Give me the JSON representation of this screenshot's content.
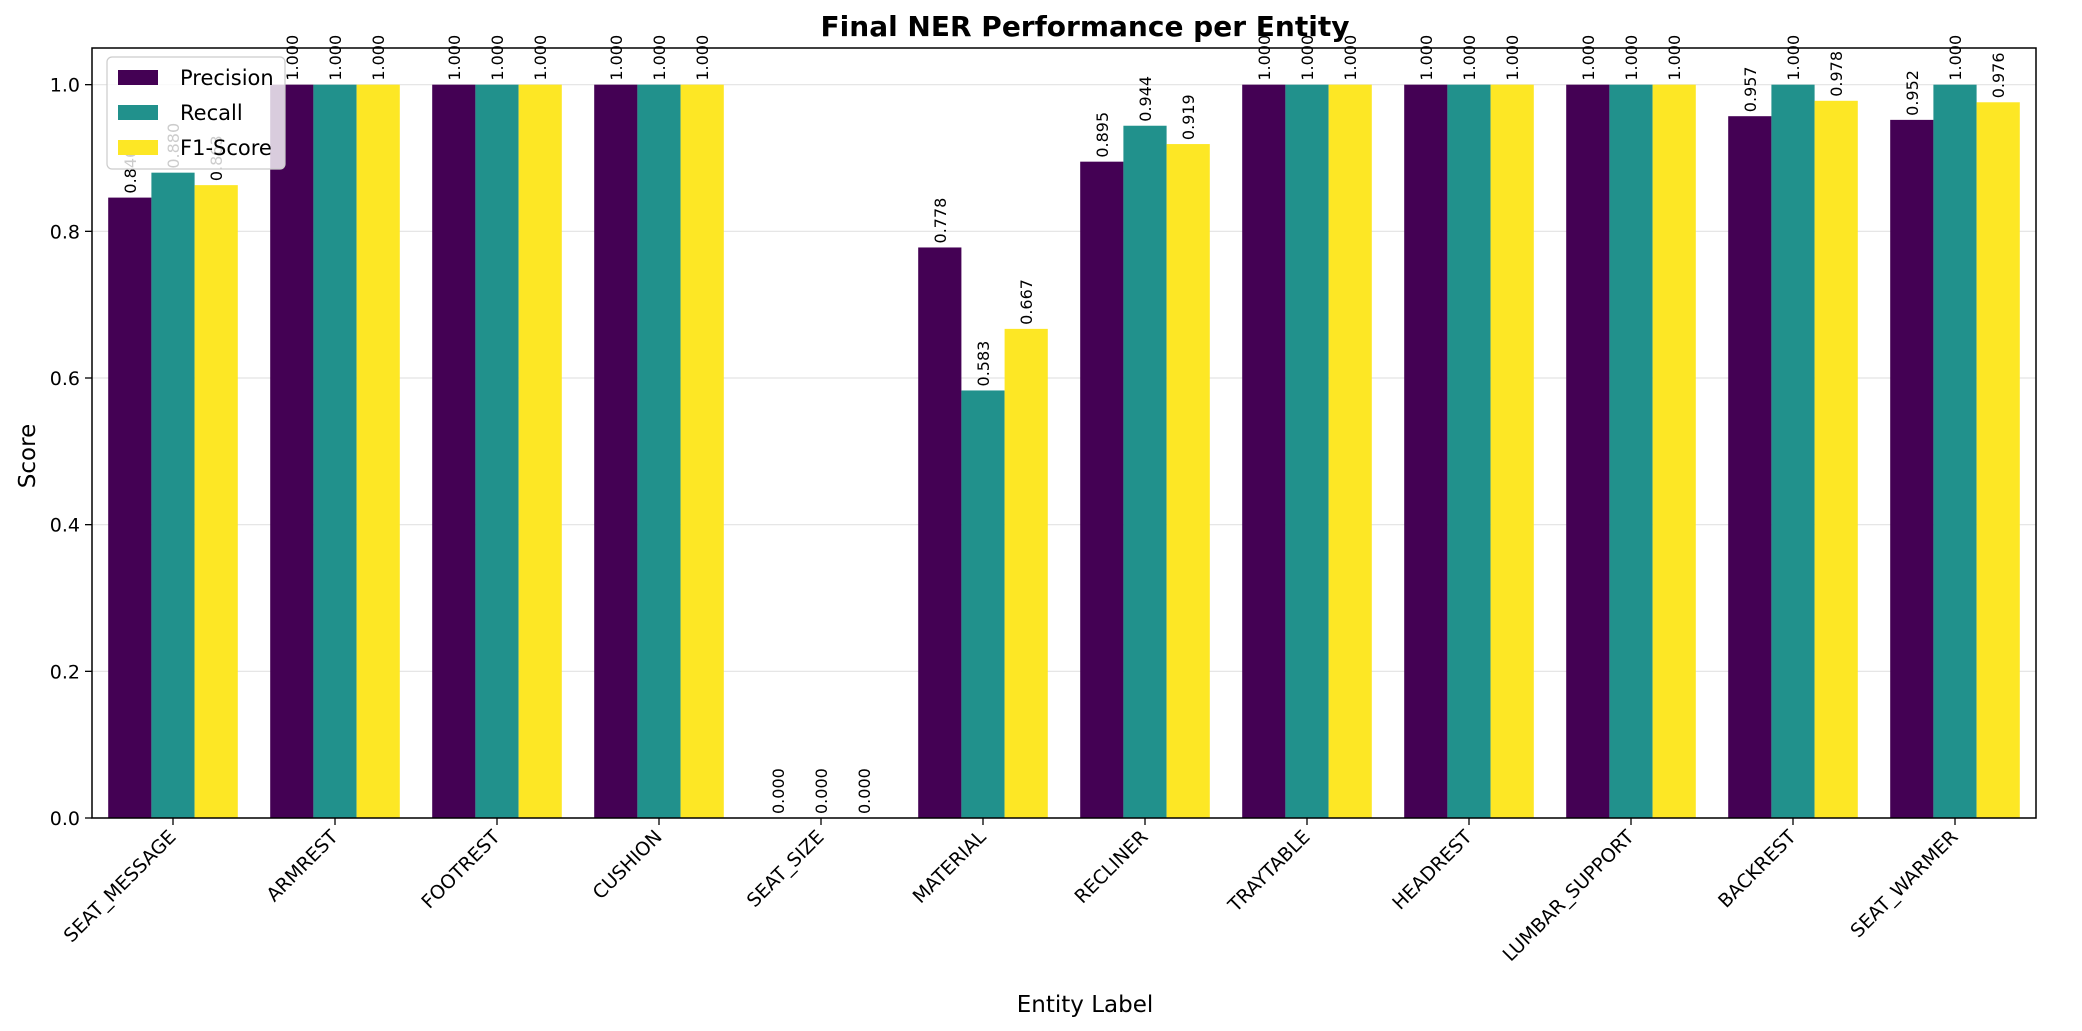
{
  "chart_data": {
    "type": "bar",
    "title": "Final NER Performance per Entity",
    "xlabel": "Entity Label",
    "ylabel": "Score",
    "ylim": [
      0,
      1.05
    ],
    "yticks": [
      "0.0",
      "0.2",
      "0.4",
      "0.6",
      "0.8",
      "1.0"
    ],
    "grid": "y",
    "legend": "top-left",
    "categories": [
      "SEAT_MESSAGE",
      "ARMREST",
      "FOOTREST",
      "CUSHION",
      "SEAT_SIZE",
      "MATERIAL",
      "RECLINER",
      "TRAYTABLE",
      "HEADREST",
      "LUMBAR_SUPPORT",
      "BACKREST",
      "SEAT_WARMER"
    ],
    "series": [
      {
        "name": "Precision",
        "color": "#440154",
        "values": [
          0.846,
          1.0,
          1.0,
          1.0,
          0.0,
          0.778,
          0.895,
          1.0,
          1.0,
          1.0,
          0.957,
          0.952
        ]
      },
      {
        "name": "Recall",
        "color": "#21918c",
        "values": [
          0.88,
          1.0,
          1.0,
          1.0,
          0.0,
          0.583,
          0.944,
          1.0,
          1.0,
          1.0,
          1.0,
          1.0
        ]
      },
      {
        "name": "F1-Score",
        "color": "#fde725",
        "values": [
          0.863,
          1.0,
          1.0,
          1.0,
          0.0,
          0.667,
          0.919,
          1.0,
          1.0,
          1.0,
          0.978,
          0.976
        ]
      }
    ],
    "data_labels": [
      [
        "0.846",
        "1.000",
        "1.000",
        "1.000",
        "0.000",
        "0.778",
        "0.895",
        "1.000",
        "1.000",
        "1.000",
        "0.957",
        "0.952"
      ],
      [
        "0.880",
        "1.000",
        "1.000",
        "1.000",
        "0.000",
        "0.583",
        "0.944",
        "1.000",
        "1.000",
        "1.000",
        "1.000",
        "1.000"
      ],
      [
        "0.863",
        "1.000",
        "1.000",
        "1.000",
        "0.000",
        "0.667",
        "0.919",
        "1.000",
        "1.000",
        "1.000",
        "0.978",
        "0.976"
      ]
    ]
  }
}
